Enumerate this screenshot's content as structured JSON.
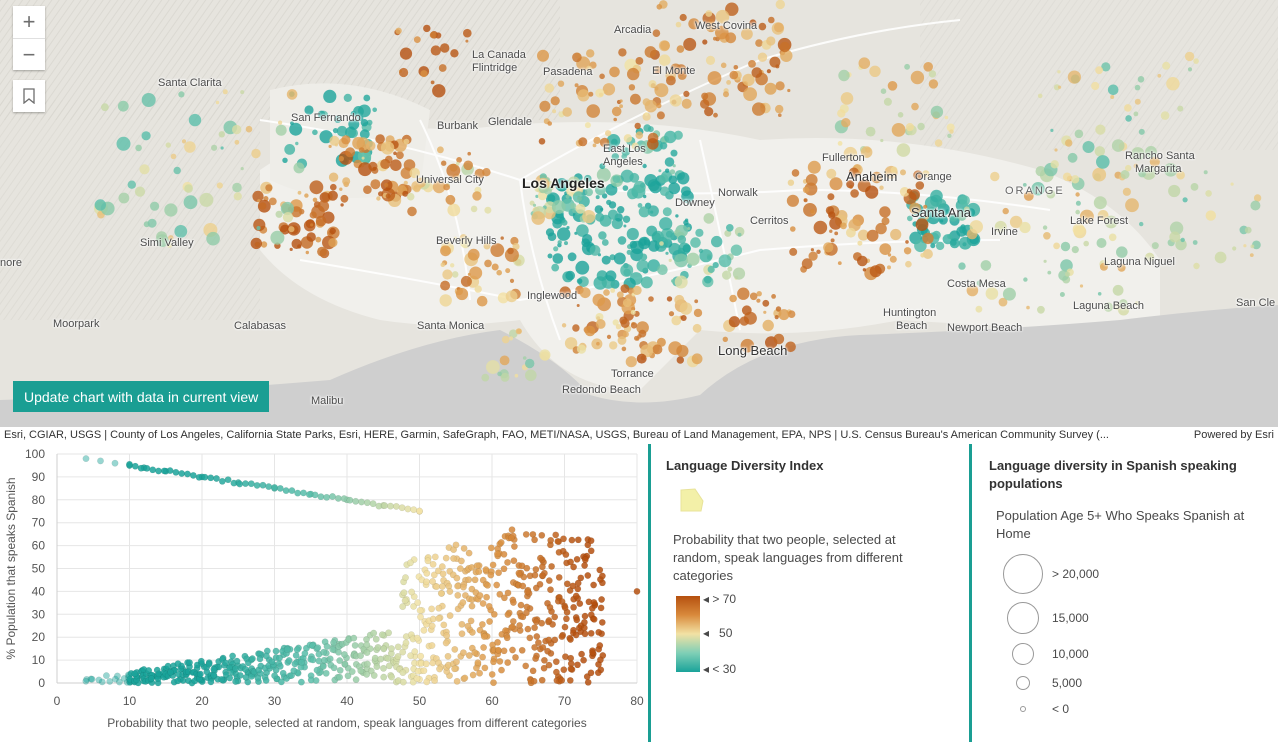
{
  "map": {
    "labels": [
      {
        "text": "West Covina",
        "cls": ""
      },
      {
        "text": "Arcadia",
        "cls": ""
      },
      {
        "text": "La Canada",
        "cls": ""
      },
      {
        "text": "Flintridge",
        "cls": ""
      },
      {
        "text": "Pasadena",
        "cls": ""
      },
      {
        "text": "El Monte",
        "cls": ""
      },
      {
        "text": "Santa Clarita",
        "cls": ""
      },
      {
        "text": "San Fernando",
        "cls": ""
      },
      {
        "text": "Burbank",
        "cls": ""
      },
      {
        "text": "Glendale",
        "cls": ""
      },
      {
        "text": "East Los",
        "cls": ""
      },
      {
        "text": "Angeles",
        "cls": ""
      },
      {
        "text": "Universal City",
        "cls": ""
      },
      {
        "text": "Los Angeles",
        "cls": "big"
      },
      {
        "text": "Fullerton",
        "cls": ""
      },
      {
        "text": "Anaheim",
        "cls": "med"
      },
      {
        "text": "Orange",
        "cls": ""
      },
      {
        "text": "ORANGE",
        "cls": "region"
      },
      {
        "text": "Rancho Santa",
        "cls": ""
      },
      {
        "text": "Margarita",
        "cls": ""
      },
      {
        "text": "Norwalk",
        "cls": ""
      },
      {
        "text": "Downey",
        "cls": ""
      },
      {
        "text": "Cerritos",
        "cls": ""
      },
      {
        "text": "Santa Ana",
        "cls": "med"
      },
      {
        "text": "Lake Forest",
        "cls": ""
      },
      {
        "text": "Irvine",
        "cls": ""
      },
      {
        "text": "Simi Valley",
        "cls": ""
      },
      {
        "text": "Beverly Hills",
        "cls": ""
      },
      {
        "text": "nore",
        "cls": ""
      },
      {
        "text": "Laguna Niguel",
        "cls": ""
      },
      {
        "text": "Costa Mesa",
        "cls": ""
      },
      {
        "text": "Inglewood",
        "cls": ""
      },
      {
        "text": "Laguna Beach",
        "cls": ""
      },
      {
        "text": "San Cle",
        "cls": ""
      },
      {
        "text": "Moorpark",
        "cls": ""
      },
      {
        "text": "Calabasas",
        "cls": ""
      },
      {
        "text": "Santa Monica",
        "cls": ""
      },
      {
        "text": "Huntington",
        "cls": ""
      },
      {
        "text": "Beach",
        "cls": ""
      },
      {
        "text": "Newport Beach",
        "cls": ""
      },
      {
        "text": "Long Beach",
        "cls": "med"
      },
      {
        "text": "Torrance",
        "cls": ""
      },
      {
        "text": "Redondo Beach",
        "cls": ""
      },
      {
        "text": "Malibu",
        "cls": ""
      }
    ],
    "update_button": "Update chart with data in current view",
    "attribution": "Esri, CGIAR, USGS | County of Los Angeles, California State Parks, Esri, HERE, Garmin, SafeGraph, FAO, METI/NASA, USGS, Bureau of Land Management, EPA, NPS | U.S. Census Bureau's American Community Survey (...",
    "powered_by": "Powered by Esri",
    "zoom_in": "+",
    "zoom_out": "−"
  },
  "chart_data": {
    "type": "scatter",
    "xlabel": "Probability that two people, selected at random, speak languages from different categories",
    "ylabel": "% Population that speaks Spanish",
    "xlim": [
      0,
      80
    ],
    "ylim": [
      0,
      100
    ],
    "xticks": [
      0,
      10,
      20,
      30,
      40,
      50,
      60,
      70,
      80
    ],
    "yticks": [
      0,
      10,
      20,
      30,
      40,
      50,
      60,
      70,
      80,
      90,
      100
    ],
    "description": "Census tracts; upper arc y = 100 - 0.5x (x 4-50), lower arc y = 0.5x fills up to the upper arc; points colored by x on teal-yellow-orange ramp; dense cluster x 10-75",
    "upper_arc": [
      [
        4,
        98
      ],
      [
        6,
        97
      ],
      [
        8,
        96
      ],
      [
        10,
        95
      ],
      [
        12,
        94
      ],
      [
        15,
        92.5
      ],
      [
        20,
        90
      ],
      [
        25,
        87.5
      ],
      [
        30,
        85
      ],
      [
        35,
        82.5
      ],
      [
        40,
        80
      ],
      [
        45,
        77.5
      ],
      [
        50,
        75
      ]
    ],
    "lower_arc": [
      [
        4,
        2
      ],
      [
        10,
        5
      ],
      [
        20,
        10
      ],
      [
        30,
        15
      ],
      [
        40,
        20
      ],
      [
        50,
        25
      ],
      [
        60,
        30
      ],
      [
        70,
        35
      ],
      [
        75,
        37
      ]
    ],
    "max_x_point": [
      80,
      40
    ]
  },
  "color_legend": {
    "title": "Language Diversity Index",
    "description": "Probability that two people, selected at random, speak languages from different categories",
    "labels": [
      "> 70",
      "50",
      "< 30"
    ],
    "colors": [
      "#b5500f",
      "#f2e2a4",
      "#1aa39a"
    ]
  },
  "size_legend": {
    "title": "Language diversity in Spanish speaking populations",
    "subtitle": "Population Age 5+ Who Speaks Spanish at Home",
    "items": [
      {
        "label": "> 20,000"
      },
      {
        "label": "15,000"
      },
      {
        "label": "10,000"
      },
      {
        "label": "5,000"
      },
      {
        "label": "< 0"
      }
    ]
  }
}
